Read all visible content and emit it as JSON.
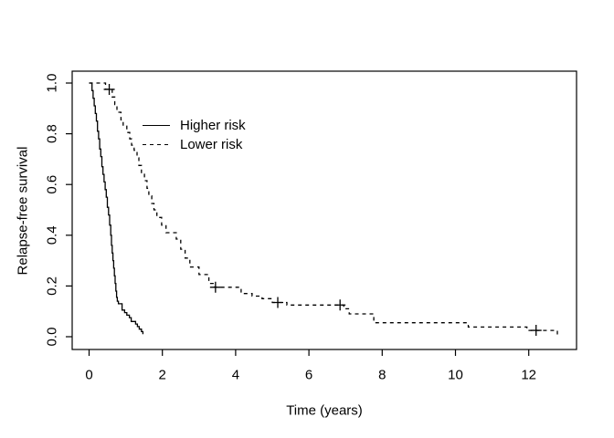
{
  "chart_data": {
    "type": "line",
    "subtype": "kaplan-meier-step-curves",
    "title": "",
    "xlabel": "Time (years)",
    "ylabel": "Relapse-free survival",
    "xlim": [
      -0.55,
      13.3
    ],
    "ylim": [
      -0.05,
      1.05
    ],
    "x_ticks": [
      0,
      2,
      4,
      6,
      8,
      10,
      12
    ],
    "x_tick_labels": [
      "0",
      "2",
      "4",
      "6",
      "8",
      "10",
      "12"
    ],
    "y_ticks": [
      0.0,
      0.2,
      0.4,
      0.6,
      0.8,
      1.0
    ],
    "y_tick_labels": [
      "0.0",
      "0.2",
      "0.4",
      "0.6",
      "0.8",
      "1.0"
    ],
    "grid": false,
    "background_color": "#ffffff",
    "line_color": "#000000",
    "legend_position": "inside-upper-left",
    "series": [
      {
        "name": "Higher risk",
        "line_style": "solid",
        "points": [
          [
            0,
            1.0
          ],
          [
            0.08,
            0.97
          ],
          [
            0.11,
            0.94
          ],
          [
            0.14,
            0.91
          ],
          [
            0.17,
            0.88
          ],
          [
            0.2,
            0.85
          ],
          [
            0.23,
            0.81
          ],
          [
            0.26,
            0.78
          ],
          [
            0.29,
            0.74
          ],
          [
            0.32,
            0.71
          ],
          [
            0.35,
            0.67
          ],
          [
            0.38,
            0.64
          ],
          [
            0.41,
            0.61
          ],
          [
            0.44,
            0.58
          ],
          [
            0.47,
            0.55
          ],
          [
            0.5,
            0.51
          ],
          [
            0.53,
            0.48
          ],
          [
            0.56,
            0.44
          ],
          [
            0.59,
            0.4
          ],
          [
            0.61,
            0.36
          ],
          [
            0.63,
            0.33
          ],
          [
            0.65,
            0.3
          ],
          [
            0.67,
            0.27
          ],
          [
            0.69,
            0.24
          ],
          [
            0.71,
            0.21
          ],
          [
            0.73,
            0.18
          ],
          [
            0.75,
            0.155
          ],
          [
            0.77,
            0.14
          ],
          [
            0.8,
            0.13
          ],
          [
            0.9,
            0.105
          ],
          [
            0.97,
            0.095
          ],
          [
            1.03,
            0.085
          ],
          [
            1.1,
            0.075
          ],
          [
            1.15,
            0.06
          ],
          [
            1.27,
            0.05
          ],
          [
            1.32,
            0.04
          ],
          [
            1.37,
            0.03
          ],
          [
            1.43,
            0.02
          ],
          [
            1.47,
            0.01
          ]
        ],
        "censor_marks": []
      },
      {
        "name": "Lower risk",
        "line_style": "dashed",
        "points": [
          [
            0,
            1.0
          ],
          [
            0.45,
            0.975
          ],
          [
            0.63,
            0.945
          ],
          [
            0.7,
            0.915
          ],
          [
            0.76,
            0.885
          ],
          [
            0.87,
            0.855
          ],
          [
            0.93,
            0.83
          ],
          [
            1.03,
            0.805
          ],
          [
            1.11,
            0.78
          ],
          [
            1.16,
            0.755
          ],
          [
            1.23,
            0.735
          ],
          [
            1.31,
            0.705
          ],
          [
            1.36,
            0.675
          ],
          [
            1.43,
            0.645
          ],
          [
            1.51,
            0.615
          ],
          [
            1.58,
            0.585
          ],
          [
            1.63,
            0.555
          ],
          [
            1.71,
            0.525
          ],
          [
            1.77,
            0.5
          ],
          [
            1.85,
            0.47
          ],
          [
            1.98,
            0.44
          ],
          [
            2.1,
            0.41
          ],
          [
            2.38,
            0.385
          ],
          [
            2.5,
            0.345
          ],
          [
            2.62,
            0.31
          ],
          [
            2.75,
            0.275
          ],
          [
            3.0,
            0.245
          ],
          [
            3.27,
            0.21
          ],
          [
            3.42,
            0.195
          ],
          [
            4.15,
            0.17
          ],
          [
            4.45,
            0.16
          ],
          [
            4.72,
            0.15
          ],
          [
            5.0,
            0.135
          ],
          [
            5.4,
            0.125
          ],
          [
            6.95,
            0.11
          ],
          [
            7.1,
            0.09
          ],
          [
            7.77,
            0.055
          ],
          [
            10.35,
            0.038
          ],
          [
            11.95,
            0.025
          ],
          [
            12.78,
            0.008
          ],
          [
            12.87,
            0.008
          ]
        ],
        "censor_marks": [
          [
            0.55,
            0.975
          ],
          [
            3.45,
            0.195
          ],
          [
            5.15,
            0.135
          ],
          [
            6.85,
            0.125
          ],
          [
            12.2,
            0.025
          ]
        ]
      }
    ]
  }
}
